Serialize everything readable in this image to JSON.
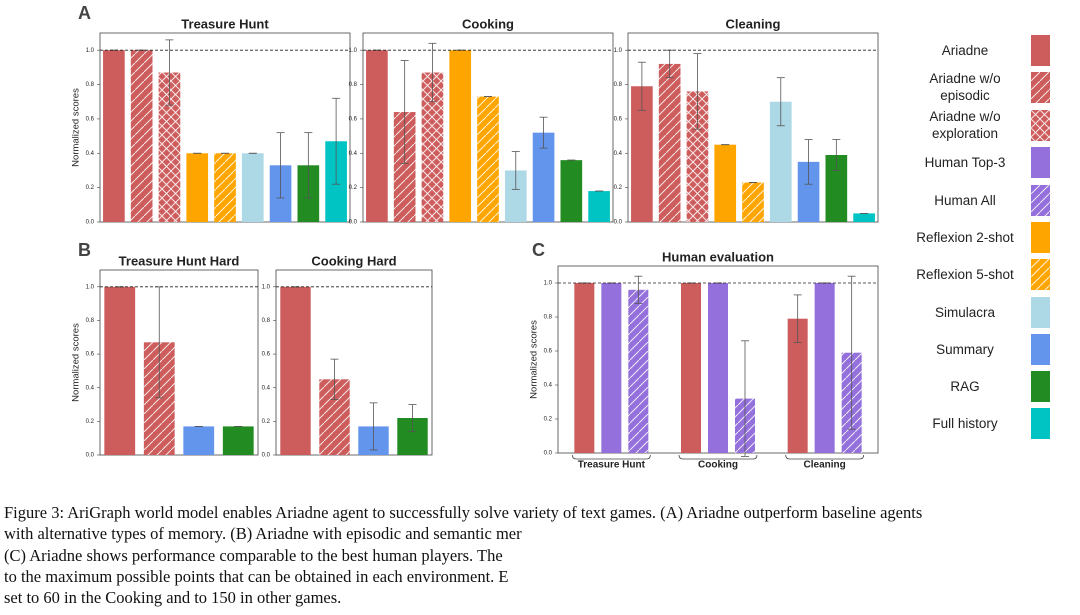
{
  "chart_data": [
    {
      "type": "bar",
      "panel": "A",
      "title": "Treasure Hunt",
      "ylabel": "Normalized scores",
      "ylim": [
        0,
        1.1
      ],
      "yticks": [
        {
          "value": 0,
          "label": "0.0"
        },
        0.2,
        0.4,
        0.6,
        0.8,
        {
          "value": 1,
          "label": "1.0"
        }
      ],
      "reference_line": 1,
      "series": [
        {
          "name": "Ariadne",
          "color": "#cd5c5c",
          "values": [
            1.0
          ],
          "errors": [
            0
          ]
        },
        {
          "name": "Ariadne w/o episodic",
          "color": "#cd5c5c",
          "hatch": "/",
          "values": [
            1.0
          ],
          "errors": [
            0
          ]
        },
        {
          "name": "Ariadne w/o exploration",
          "color": "#cd5c5c",
          "hatch": "x",
          "values": [
            0.87
          ],
          "errors": [
            0.19
          ]
        },
        {
          "name": "Reflexion 2-shot",
          "color": "#ffa500",
          "values": [
            0.4
          ],
          "errors": [
            0
          ]
        },
        {
          "name": "Reflexion 5-shot",
          "color": "#ffa500",
          "hatch": "/",
          "values": [
            0.4
          ],
          "errors": [
            0
          ]
        },
        {
          "name": "Simulacra",
          "color": "#add8e6",
          "values": [
            0.4
          ],
          "errors": [
            0
          ]
        },
        {
          "name": "Summary",
          "color": "#6495ed",
          "values": [
            0.33
          ],
          "errors": [
            0.19
          ]
        },
        {
          "name": "RAG",
          "color": "#228b22",
          "values": [
            0.33
          ],
          "errors": [
            0.19
          ]
        },
        {
          "name": "Full history",
          "color": "#00c4c4",
          "values": [
            0.47
          ],
          "errors": [
            0.25
          ]
        }
      ]
    },
    {
      "type": "bar",
      "title": "Cooking",
      "ylim": [
        0,
        1.1
      ],
      "yticks": [
        {
          "value": 0,
          "label": "0.0"
        },
        0.2,
        0.4,
        0.6,
        0.8,
        {
          "value": 1,
          "label": "1.0"
        }
      ],
      "reference_line": 1,
      "series": [
        {
          "name": "Ariadne",
          "color": "#cd5c5c",
          "values": [
            1.0
          ],
          "errors": [
            0
          ]
        },
        {
          "name": "Ariadne w/o episodic",
          "color": "#cd5c5c",
          "hatch": "/",
          "values": [
            0.64
          ],
          "errors": [
            0.3
          ]
        },
        {
          "name": "Ariadne w/o exploration",
          "color": "#cd5c5c",
          "hatch": "x",
          "values": [
            0.87
          ],
          "errors": [
            0.17
          ]
        },
        {
          "name": "Reflexion 2-shot",
          "color": "#ffa500",
          "values": [
            1.0
          ],
          "errors": [
            0
          ]
        },
        {
          "name": "Reflexion 5-shot",
          "color": "#ffa500",
          "hatch": "/",
          "values": [
            0.73
          ],
          "errors": [
            0
          ]
        },
        {
          "name": "Simulacra",
          "color": "#add8e6",
          "values": [
            0.3
          ],
          "errors": [
            0.11
          ]
        },
        {
          "name": "Summary",
          "color": "#6495ed",
          "values": [
            0.52
          ],
          "errors": [
            0.09
          ]
        },
        {
          "name": "RAG",
          "color": "#228b22",
          "values": [
            0.36
          ],
          "errors": [
            0
          ]
        },
        {
          "name": "Full history",
          "color": "#00c4c4",
          "values": [
            0.18
          ],
          "errors": [
            0
          ]
        }
      ]
    },
    {
      "type": "bar",
      "title": "Cleaning",
      "ylim": [
        0,
        1.1
      ],
      "yticks": [
        {
          "value": 0,
          "label": "0.0"
        },
        0.2,
        0.4,
        0.6,
        0.8,
        {
          "value": 1,
          "label": "1.0"
        }
      ],
      "reference_line": 1,
      "series": [
        {
          "name": "Ariadne",
          "color": "#cd5c5c",
          "values": [
            0.79
          ],
          "errors": [
            0.14
          ]
        },
        {
          "name": "Ariadne w/o episodic",
          "color": "#cd5c5c",
          "hatch": "/",
          "values": [
            0.92
          ],
          "errors": [
            0.08
          ]
        },
        {
          "name": "Ariadne w/o exploration",
          "color": "#cd5c5c",
          "hatch": "x",
          "values": [
            0.76
          ],
          "errors": [
            0.22
          ]
        },
        {
          "name": "Reflexion 2-shot",
          "color": "#ffa500",
          "values": [
            0.45
          ],
          "errors": [
            0
          ]
        },
        {
          "name": "Reflexion 5-shot",
          "color": "#ffa500",
          "hatch": "/",
          "values": [
            0.23
          ],
          "errors": [
            0
          ]
        },
        {
          "name": "Simulacra",
          "color": "#add8e6",
          "values": [
            0.7
          ],
          "errors": [
            0.14
          ]
        },
        {
          "name": "Summary",
          "color": "#6495ed",
          "values": [
            0.35
          ],
          "errors": [
            0.13
          ]
        },
        {
          "name": "RAG",
          "color": "#228b22",
          "values": [
            0.39
          ],
          "errors": [
            0.09
          ]
        },
        {
          "name": "Full history",
          "color": "#00c4c4",
          "values": [
            0.05
          ],
          "errors": [
            0
          ]
        }
      ]
    },
    {
      "type": "bar",
      "panel": "B",
      "title": "Treasure Hunt Hard",
      "ylabel": "Normalized scores",
      "ylim": [
        0,
        1.1
      ],
      "yticks": [
        {
          "value": 0,
          "label": "0.0"
        },
        0.2,
        0.4,
        0.6,
        0.8,
        {
          "value": 1,
          "label": "1.0"
        }
      ],
      "reference_line": 1,
      "series": [
        {
          "name": "Ariadne",
          "color": "#cd5c5c",
          "values": [
            1.0
          ],
          "errors": [
            0
          ]
        },
        {
          "name": "Ariadne w/o episodic",
          "color": "#cd5c5c",
          "hatch": "/",
          "values": [
            0.67
          ],
          "errors": [
            0.33
          ]
        },
        {
          "name": "Summary",
          "color": "#6495ed",
          "values": [
            0.17
          ],
          "errors": [
            0
          ]
        },
        {
          "name": "RAG",
          "color": "#228b22",
          "values": [
            0.17
          ],
          "errors": [
            0
          ]
        }
      ]
    },
    {
      "type": "bar",
      "title": "Cooking Hard",
      "ylim": [
        0,
        1.1
      ],
      "yticks": [
        {
          "value": 0,
          "label": "0.0"
        },
        0.2,
        0.4,
        0.6,
        0.8,
        {
          "value": 1,
          "label": "1.0"
        }
      ],
      "reference_line": 1,
      "series": [
        {
          "name": "Ariadne",
          "color": "#cd5c5c",
          "values": [
            1.0
          ],
          "errors": [
            0
          ]
        },
        {
          "name": "Ariadne w/o episodic",
          "color": "#cd5c5c",
          "hatch": "/",
          "values": [
            0.45
          ],
          "errors": [
            0.12
          ]
        },
        {
          "name": "Summary",
          "color": "#6495ed",
          "values": [
            0.17
          ],
          "errors": [
            0.14
          ]
        },
        {
          "name": "RAG",
          "color": "#228b22",
          "values": [
            0.22
          ],
          "errors": [
            0.08
          ]
        }
      ]
    },
    {
      "type": "bar",
      "panel": "C",
      "title": "Human evaluation",
      "ylabel": "Normalized scores",
      "ylim": [
        0,
        1.1
      ],
      "yticks": [
        {
          "value": 0,
          "label": "0.0"
        },
        0.2,
        0.4,
        0.6,
        0.8,
        {
          "value": 1,
          "label": "1.0"
        }
      ],
      "reference_line": 1,
      "categories": [
        "Treasure Hunt",
        "Cooking",
        "Cleaning"
      ],
      "series": [
        {
          "name": "Ariadne",
          "color": "#cd5c5c",
          "values": [
            1.0,
            1.0,
            0.79
          ],
          "errors": [
            0,
            0,
            0.14
          ]
        },
        {
          "name": "Human Top-3",
          "color": "#9370db",
          "values": [
            1.0,
            1.0,
            1.0
          ],
          "errors": [
            0,
            0,
            0
          ]
        },
        {
          "name": "Human All",
          "color": "#9370db",
          "hatch": "/",
          "values": [
            0.96,
            0.32,
            0.59
          ],
          "errors": [
            0.08,
            0.34,
            0.45
          ]
        }
      ]
    }
  ],
  "legend": [
    {
      "name": "Ariadne",
      "color": "#cd5c5c"
    },
    {
      "name": "Ariadne w/o episodic",
      "color": "#cd5c5c",
      "hatch": "/"
    },
    {
      "name": "Ariadne w/o exploration",
      "color": "#cd5c5c",
      "hatch": "x"
    },
    {
      "name": "Human Top-3",
      "color": "#9370db"
    },
    {
      "name": "Human All",
      "color": "#9370db",
      "hatch": "/"
    },
    {
      "name": "Reflexion 2-shot",
      "color": "#ffa500"
    },
    {
      "name": "Reflexion 5-shot",
      "color": "#ffa500",
      "hatch": "/"
    },
    {
      "name": "Simulacra",
      "color": "#add8e6"
    },
    {
      "name": "Summary",
      "color": "#6495ed"
    },
    {
      "name": "RAG",
      "color": "#228b22"
    },
    {
      "name": "Full history",
      "color": "#00c4c4"
    }
  ],
  "caption": [
    "Figure 3: AriGraph world model enables Ariadne agent to successfully solve variety of text games. (A) Ariadne outperform baseline agents",
    "with alternative types of memory. (B) Ariadne with episodic and semantic mer",
    "(C) Ariadne shows performance comparable to the best human players. The",
    "to the maximum possible points that can be obtained in each environment. E",
    "set to 60 in the Cooking and to 150 in other games."
  ]
}
